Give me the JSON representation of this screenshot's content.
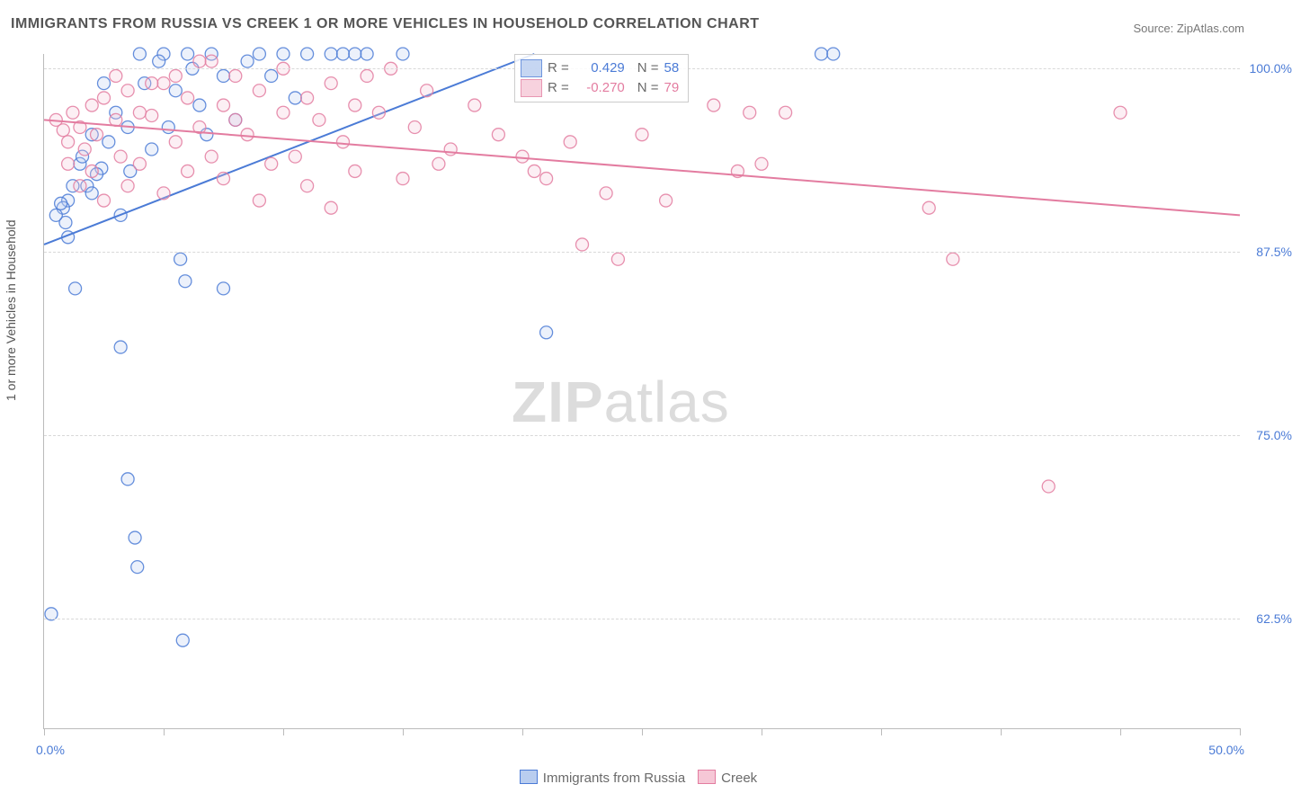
{
  "title": "IMMIGRANTS FROM RUSSIA VS CREEK 1 OR MORE VEHICLES IN HOUSEHOLD CORRELATION CHART",
  "source": "Source: ZipAtlas.com",
  "yaxis_title": "1 or more Vehicles in Household",
  "watermark": {
    "bold": "ZIP",
    "rest": "atlas"
  },
  "chart": {
    "type": "scatter",
    "background_color": "#ffffff",
    "grid_color": "#d8d8d8",
    "axis_color": "#bbbbbb",
    "text_color": "#555555",
    "tick_label_color": "#4b7bd6",
    "xlim": [
      0,
      50
    ],
    "ylim": [
      55,
      101
    ],
    "xticks": [
      0,
      5,
      10,
      15,
      20,
      25,
      30,
      35,
      40,
      45,
      50
    ],
    "xtick_labels": {
      "left": "0.0%",
      "right": "50.0%"
    },
    "yticks": [
      62.5,
      75.0,
      87.5,
      100.0
    ],
    "ytick_labels": [
      "62.5%",
      "75.0%",
      "87.5%",
      "100.0%"
    ],
    "marker_radius": 7,
    "marker_fill_opacity": 0.28,
    "series": [
      {
        "name": "Immigrants from Russia",
        "color": "#4b7bd6",
        "fill": "#b9cdef",
        "R": "0.429",
        "N": "58",
        "trend": {
          "x1": 0,
          "y1": 88.0,
          "x2": 20.5,
          "y2": 101.0
        },
        "points": [
          [
            0.3,
            62.8
          ],
          [
            1.0,
            91.0
          ],
          [
            0.8,
            90.5
          ],
          [
            1.2,
            92.0
          ],
          [
            1.5,
            93.5
          ],
          [
            0.9,
            89.5
          ],
          [
            1.8,
            92.0
          ],
          [
            2.0,
            95.5
          ],
          [
            2.4,
            93.2
          ],
          [
            3.0,
            97.0
          ],
          [
            3.5,
            96.0
          ],
          [
            4.0,
            101.0
          ],
          [
            4.2,
            99.0
          ],
          [
            5.0,
            101.0
          ],
          [
            5.5,
            98.5
          ],
          [
            6.0,
            101.0
          ],
          [
            7.0,
            101.0
          ],
          [
            7.5,
            99.5
          ],
          [
            8.0,
            96.5
          ],
          [
            9.0,
            101.0
          ],
          [
            10.0,
            101.0
          ],
          [
            10.5,
            98.0
          ],
          [
            11.0,
            101.0
          ],
          [
            12.0,
            101.0
          ],
          [
            12.5,
            101.0
          ],
          [
            13.0,
            101.0
          ],
          [
            13.5,
            101.0
          ],
          [
            15.0,
            101.0
          ],
          [
            0.5,
            90.0
          ],
          [
            0.7,
            90.8
          ],
          [
            1.0,
            88.5
          ],
          [
            1.3,
            85.0
          ],
          [
            1.6,
            94.0
          ],
          [
            2.0,
            91.5
          ],
          [
            2.2,
            92.8
          ],
          [
            2.7,
            95.0
          ],
          [
            3.2,
            90.0
          ],
          [
            3.6,
            93.0
          ],
          [
            4.5,
            94.5
          ],
          [
            5.2,
            96.0
          ],
          [
            6.5,
            97.5
          ],
          [
            21.0,
            82.0
          ],
          [
            32.5,
            101.0
          ],
          [
            33.0,
            101.0
          ],
          [
            3.2,
            81.0
          ],
          [
            3.5,
            72.0
          ],
          [
            3.8,
            68.0
          ],
          [
            3.9,
            66.0
          ],
          [
            5.8,
            61.0
          ],
          [
            5.9,
            85.5
          ],
          [
            5.7,
            87.0
          ],
          [
            7.5,
            85.0
          ],
          [
            2.5,
            99.0
          ],
          [
            4.8,
            100.5
          ],
          [
            6.2,
            100.0
          ],
          [
            8.5,
            100.5
          ],
          [
            9.5,
            99.5
          ],
          [
            6.8,
            95.5
          ]
        ]
      },
      {
        "name": "Creek",
        "color": "#e37ca0",
        "fill": "#f6c7d6",
        "R": "-0.270",
        "N": "79",
        "trend": {
          "x1": 0,
          "y1": 96.5,
          "x2": 50,
          "y2": 90.0
        },
        "points": [
          [
            0.5,
            96.5
          ],
          [
            0.8,
            95.8
          ],
          [
            1.0,
            95.0
          ],
          [
            1.2,
            97.0
          ],
          [
            1.5,
            96.0
          ],
          [
            1.7,
            94.5
          ],
          [
            2.0,
            97.5
          ],
          [
            2.2,
            95.5
          ],
          [
            2.5,
            98.0
          ],
          [
            3.0,
            96.5
          ],
          [
            3.2,
            94.0
          ],
          [
            3.5,
            98.5
          ],
          [
            4.0,
            97.0
          ],
          [
            4.5,
            96.8
          ],
          [
            5.0,
            99.0
          ],
          [
            5.5,
            95.0
          ],
          [
            6.0,
            98.0
          ],
          [
            6.5,
            96.0
          ],
          [
            7.0,
            100.5
          ],
          [
            7.5,
            97.5
          ],
          [
            8.0,
            99.5
          ],
          [
            8.5,
            95.5
          ],
          [
            9.0,
            98.5
          ],
          [
            9.5,
            93.5
          ],
          [
            10.0,
            97.0
          ],
          [
            10.5,
            94.0
          ],
          [
            11.0,
            92.0
          ],
          [
            11.5,
            96.5
          ],
          [
            12.0,
            90.5
          ],
          [
            12.5,
            95.0
          ],
          [
            13.0,
            93.0
          ],
          [
            14.0,
            97.0
          ],
          [
            14.5,
            100.0
          ],
          [
            15.0,
            92.5
          ],
          [
            16.0,
            98.5
          ],
          [
            17.0,
            94.5
          ],
          [
            18.0,
            97.5
          ],
          [
            19.0,
            95.5
          ],
          [
            20.0,
            94.0
          ],
          [
            20.5,
            93.0
          ],
          [
            21.0,
            92.5
          ],
          [
            22.0,
            95.0
          ],
          [
            22.5,
            88.0
          ],
          [
            24.0,
            87.0
          ],
          [
            23.5,
            91.5
          ],
          [
            25.0,
            95.5
          ],
          [
            26.0,
            91.0
          ],
          [
            28.0,
            97.5
          ],
          [
            30.0,
            93.5
          ],
          [
            29.5,
            97.0
          ],
          [
            37.0,
            90.5
          ],
          [
            38.0,
            87.0
          ],
          [
            42.0,
            71.5
          ],
          [
            45.0,
            97.0
          ],
          [
            1.0,
            93.5
          ],
          [
            1.5,
            92.0
          ],
          [
            2.0,
            93.0
          ],
          [
            2.5,
            91.0
          ],
          [
            3.0,
            99.5
          ],
          [
            3.5,
            92.0
          ],
          [
            4.0,
            93.5
          ],
          [
            4.5,
            99.0
          ],
          [
            5.0,
            91.5
          ],
          [
            5.5,
            99.5
          ],
          [
            6.0,
            93.0
          ],
          [
            6.5,
            100.5
          ],
          [
            7.0,
            94.0
          ],
          [
            7.5,
            92.5
          ],
          [
            8.0,
            96.5
          ],
          [
            9.0,
            91.0
          ],
          [
            10.0,
            100.0
          ],
          [
            11.0,
            98.0
          ],
          [
            12.0,
            99.0
          ],
          [
            13.0,
            97.5
          ],
          [
            15.5,
            96.0
          ],
          [
            16.5,
            93.5
          ],
          [
            13.5,
            99.5
          ],
          [
            31.0,
            97.0
          ],
          [
            29.0,
            93.0
          ]
        ]
      }
    ],
    "legend_box": {
      "R_label": "R =",
      "N_label": "N =",
      "text_color_muted": "#6a6a6a"
    },
    "bottom_legend": {
      "items": [
        "Immigrants from Russia",
        "Creek"
      ]
    }
  }
}
